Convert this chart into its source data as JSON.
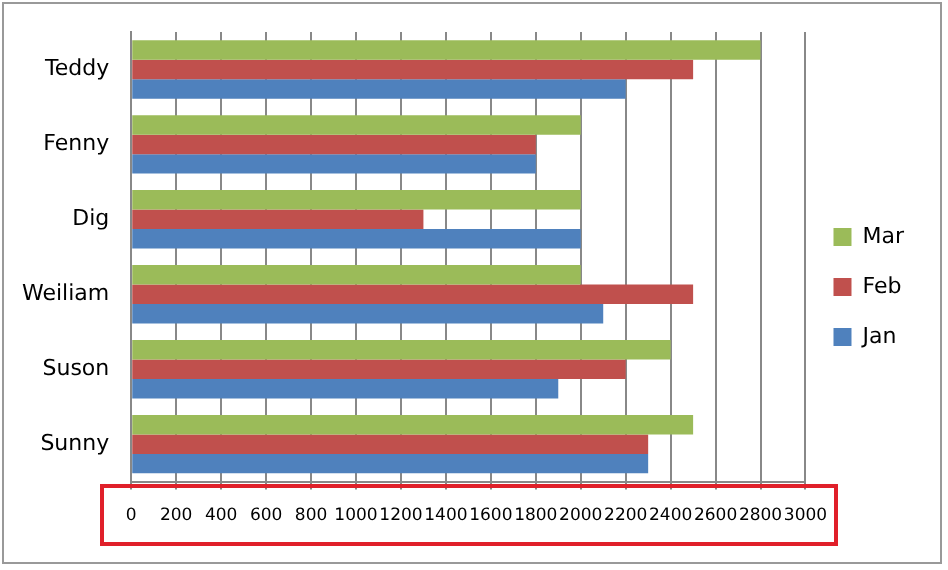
{
  "chart_data": {
    "type": "bar",
    "orientation": "horizontal",
    "categories": [
      "Teddy",
      "Fenny",
      "Dig",
      "Weiliam",
      "Suson",
      "Sunny"
    ],
    "series": [
      {
        "name": "Mar",
        "color": "#9bbb59",
        "values": [
          2800,
          2000,
          2000,
          2000,
          2400,
          2500
        ]
      },
      {
        "name": "Feb",
        "color": "#c0504d",
        "values": [
          2500,
          1800,
          1300,
          2500,
          2200,
          2300
        ]
      },
      {
        "name": "Jan",
        "color": "#4f81bd",
        "values": [
          2200,
          1800,
          2000,
          2100,
          1900,
          2300
        ]
      }
    ],
    "xlim": [
      0,
      3000
    ],
    "xticks": [
      0,
      200,
      400,
      600,
      800,
      1000,
      1200,
      1400,
      1600,
      1800,
      2000,
      2200,
      2400,
      2600,
      2800,
      3000
    ],
    "grid": "x",
    "legend": "right"
  }
}
